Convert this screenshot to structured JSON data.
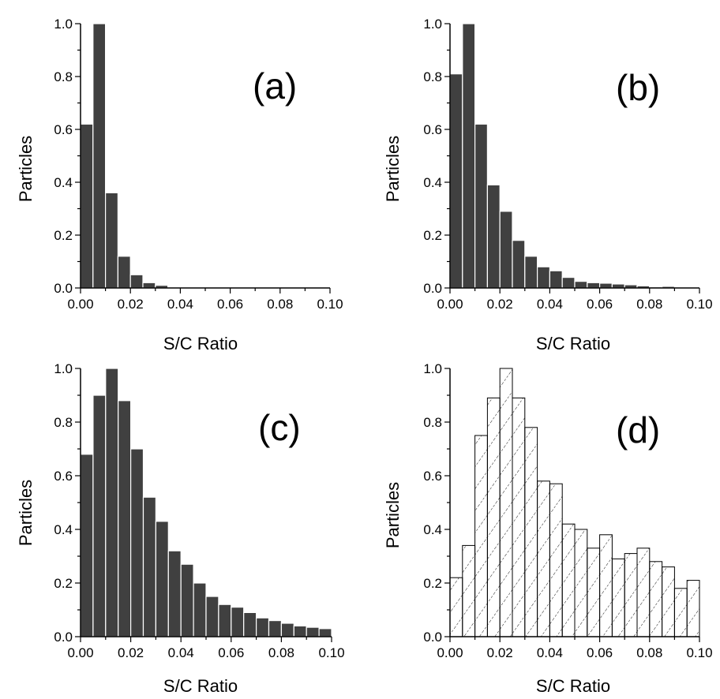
{
  "chart_data": [
    {
      "type": "bar",
      "panel_label": "(a)",
      "xlabel": "S/C Ratio",
      "ylabel": "Particles",
      "xlim": [
        0,
        0.1
      ],
      "ylim": [
        0,
        1.0
      ],
      "xticks": [
        "0.00",
        "0.02",
        "0.04",
        "0.06",
        "0.08",
        "0.10"
      ],
      "yticks": [
        "0.0",
        "0.2",
        "0.4",
        "0.6",
        "0.8",
        "1.0"
      ],
      "bin_width": 0.005,
      "fill": "solid",
      "bar_color": "#404040",
      "x": [
        0.0025,
        0.0075,
        0.0125,
        0.0175,
        0.0225,
        0.0275,
        0.0325
      ],
      "values": [
        0.62,
        1.0,
        0.36,
        0.12,
        0.05,
        0.02,
        0.01
      ]
    },
    {
      "type": "bar",
      "panel_label": "(b)",
      "xlabel": "S/C Ratio",
      "ylabel": "Particles",
      "xlim": [
        0,
        0.1
      ],
      "ylim": [
        0,
        1.0
      ],
      "xticks": [
        "0.00",
        "0.02",
        "0.04",
        "0.06",
        "0.08",
        "0.10"
      ],
      "yticks": [
        "0.0",
        "0.2",
        "0.4",
        "0.6",
        "0.8",
        "1.0"
      ],
      "bin_width": 0.005,
      "fill": "solid",
      "bar_color": "#404040",
      "x": [
        0.0025,
        0.0075,
        0.0125,
        0.0175,
        0.0225,
        0.0275,
        0.0325,
        0.0375,
        0.0425,
        0.0475,
        0.0525,
        0.0575,
        0.0625,
        0.0675,
        0.0725,
        0.0775,
        0.0825,
        0.0875
      ],
      "values": [
        0.81,
        1.0,
        0.62,
        0.39,
        0.29,
        0.18,
        0.12,
        0.08,
        0.065,
        0.04,
        0.025,
        0.02,
        0.018,
        0.015,
        0.012,
        0.008,
        0.004,
        0.006
      ]
    },
    {
      "type": "bar",
      "panel_label": "(c)",
      "xlabel": "S/C Ratio",
      "ylabel": "Particles",
      "xlim": [
        0,
        0.1
      ],
      "ylim": [
        0,
        1.0
      ],
      "xticks": [
        "0.00",
        "0.02",
        "0.04",
        "0.06",
        "0.08",
        "0.10"
      ],
      "yticks": [
        "0.0",
        "0.2",
        "0.4",
        "0.6",
        "0.8",
        "1.0"
      ],
      "bin_width": 0.005,
      "fill": "solid",
      "bar_color": "#404040",
      "x": [
        0.0025,
        0.0075,
        0.0125,
        0.0175,
        0.0225,
        0.0275,
        0.0325,
        0.0375,
        0.0425,
        0.0475,
        0.0525,
        0.0575,
        0.0625,
        0.0675,
        0.0725,
        0.0775,
        0.0825,
        0.0875,
        0.0925,
        0.0975
      ],
      "values": [
        0.68,
        0.9,
        1.0,
        0.88,
        0.7,
        0.52,
        0.43,
        0.32,
        0.27,
        0.2,
        0.15,
        0.12,
        0.11,
        0.09,
        0.07,
        0.06,
        0.05,
        0.04,
        0.035,
        0.03
      ]
    },
    {
      "type": "bar",
      "panel_label": "(d)",
      "xlabel": "S/C Ratio",
      "ylabel": "Particles",
      "xlim": [
        0,
        0.1
      ],
      "ylim": [
        0,
        1.0
      ],
      "xticks": [
        "0.00",
        "0.02",
        "0.04",
        "0.06",
        "0.08",
        "0.10"
      ],
      "yticks": [
        "0.0",
        "0.2",
        "0.4",
        "0.6",
        "0.8",
        "1.0"
      ],
      "bin_width": 0.005,
      "fill": "hatched",
      "bar_color": "#000000",
      "x": [
        0.0025,
        0.0075,
        0.0125,
        0.0175,
        0.0225,
        0.0275,
        0.0325,
        0.0375,
        0.0425,
        0.0475,
        0.0525,
        0.0575,
        0.0625,
        0.0675,
        0.0725,
        0.0775,
        0.0825,
        0.0875,
        0.0925,
        0.0975
      ],
      "values": [
        0.22,
        0.34,
        0.75,
        0.89,
        1.0,
        0.89,
        0.78,
        0.58,
        0.57,
        0.42,
        0.4,
        0.33,
        0.38,
        0.29,
        0.31,
        0.33,
        0.28,
        0.26,
        0.18,
        0.21
      ]
    }
  ]
}
